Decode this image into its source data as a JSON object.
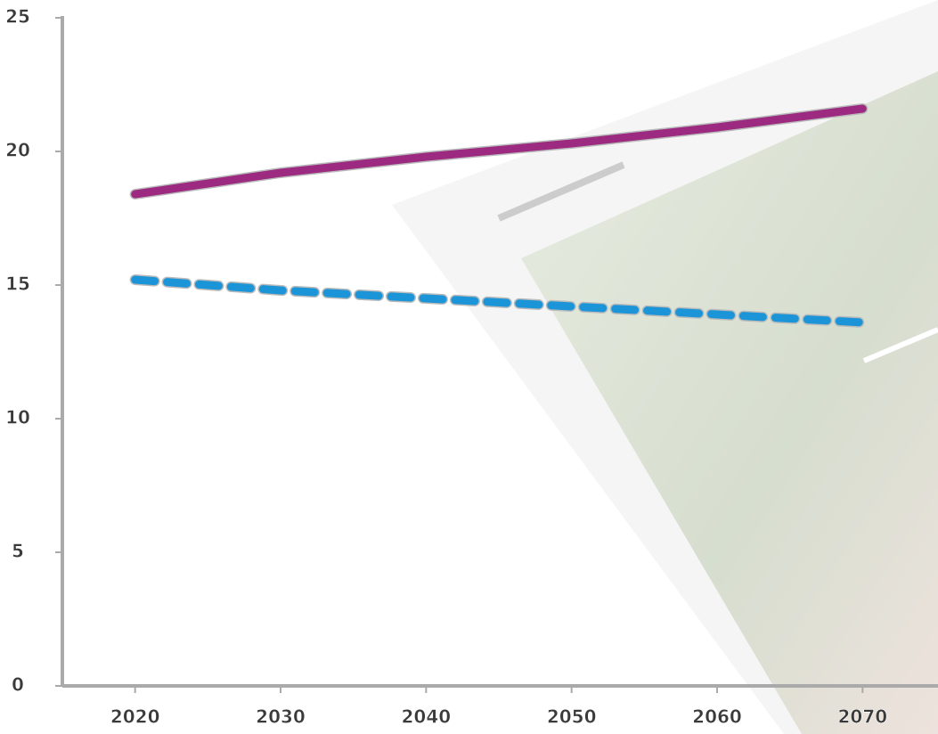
{
  "chart_data": {
    "type": "line",
    "x": [
      2020,
      2030,
      2040,
      2050,
      2060,
      2070
    ],
    "series": [
      {
        "color": "#9b2a80",
        "style": "solid",
        "values": [
          18.4,
          19.2,
          19.8,
          20.3,
          20.9,
          21.6
        ]
      },
      {
        "color": "#1b95d8",
        "style": "dashed",
        "values": [
          15.2,
          14.8,
          14.5,
          14.2,
          13.9,
          13.6
        ]
      }
    ],
    "xlim": [
      2015,
      2075
    ],
    "xticks": [
      2020,
      2030,
      2040,
      2050,
      2060,
      2070
    ],
    "ylim": [
      0,
      25
    ],
    "yticks": [
      0,
      5,
      10,
      15,
      20,
      25
    ]
  }
}
